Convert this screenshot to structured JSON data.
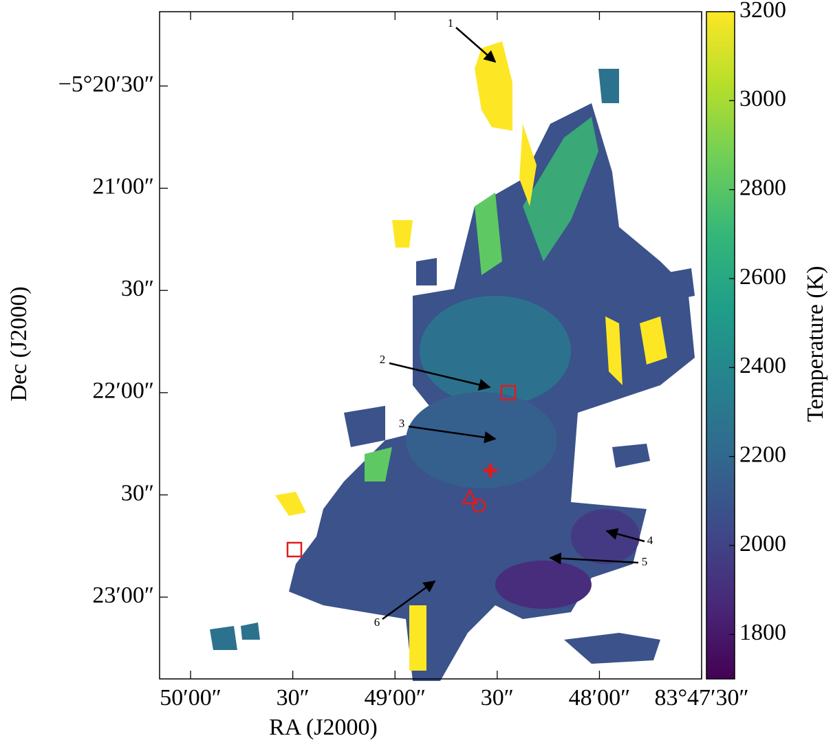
{
  "chart_data": {
    "type": "heatmap",
    "xlabel": "RA (J2000)",
    "ylabel": "Dec (J2000)",
    "colorbar_label": "Temperature (K)",
    "colormap": "viridis",
    "xlim": [
      83.83586,
      83.79167
    ],
    "ylim": [
      -5.39,
      -5.33561
    ],
    "xticks": [
      {
        "value": 83.833333,
        "label": "50′00″"
      },
      {
        "value": 83.825,
        "label": "30″"
      },
      {
        "value": 83.816667,
        "label": "49′00″"
      },
      {
        "value": 83.808333,
        "label": "30″"
      },
      {
        "value": 83.8,
        "label": "48′00″"
      },
      {
        "value": 83.791667,
        "label": "83°47′30″"
      }
    ],
    "yticks": [
      {
        "value": -5.341667,
        "label": "−5°20′30″"
      },
      {
        "value": -5.35,
        "label": "21′00″"
      },
      {
        "value": -5.358333,
        "label": "30″"
      },
      {
        "value": -5.366667,
        "label": "22′00″"
      },
      {
        "value": -5.375,
        "label": "30″"
      },
      {
        "value": -5.383333,
        "label": "23′00″"
      }
    ],
    "clim": [
      1700,
      3200
    ],
    "cticks": [
      1800,
      2000,
      2200,
      2400,
      2600,
      2800,
      3000,
      3200
    ],
    "annotations": [
      "1",
      "2",
      "3",
      "4",
      "5",
      "6"
    ]
  }
}
